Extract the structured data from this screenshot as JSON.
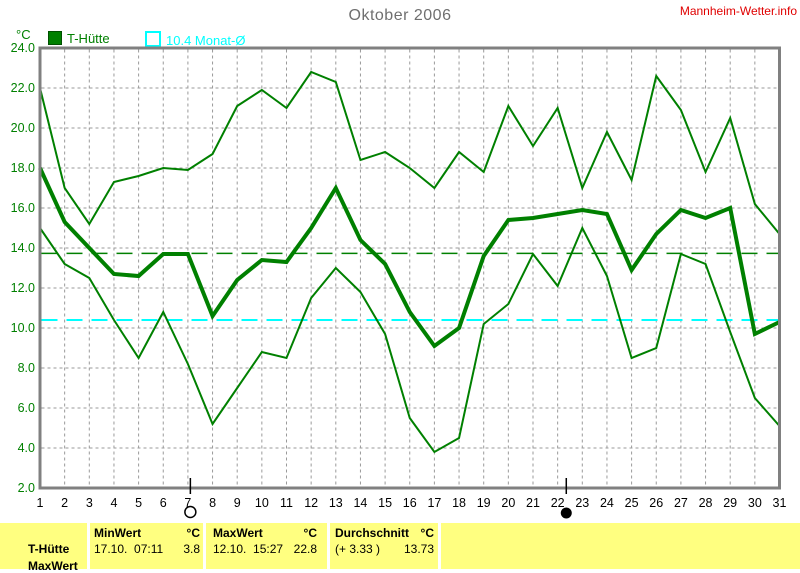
{
  "header": {
    "title": "Oktober 2006",
    "brand": "Mannheim-Wetter.info",
    "axis_unit": "°C"
  },
  "legend": {
    "items": [
      {
        "label": "T-Hütte",
        "color": "#008000",
        "swatch": "filled"
      },
      {
        "label": "10.4 Monat-Ø",
        "color": "#00ffff",
        "swatch": "outline"
      }
    ]
  },
  "chart_data": {
    "type": "line",
    "title": "Oktober 2006",
    "xlabel": "",
    "ylabel": "°C",
    "x": [
      1,
      2,
      3,
      4,
      5,
      6,
      7,
      8,
      9,
      10,
      11,
      12,
      13,
      14,
      15,
      16,
      17,
      18,
      19,
      20,
      21,
      22,
      23,
      24,
      25,
      26,
      27,
      28,
      29,
      30,
      31
    ],
    "xlim": [
      1,
      31
    ],
    "ylim": [
      2,
      24
    ],
    "y_tick_step": 2,
    "grid": true,
    "line_color": "#008000",
    "series": [
      {
        "name": "max",
        "width": 2,
        "values": [
          22.0,
          17.0,
          15.2,
          17.3,
          17.6,
          18.0,
          17.9,
          18.7,
          21.1,
          21.9,
          21.0,
          22.8,
          22.3,
          18.4,
          18.8,
          18.0,
          17.0,
          18.8,
          17.8,
          21.1,
          19.1,
          21.0,
          17.0,
          19.8,
          17.4,
          22.6,
          20.9,
          17.8,
          20.5,
          16.2,
          14.7
        ]
      },
      {
        "name": "mittel",
        "width": 4,
        "values": [
          18.0,
          15.3,
          14.0,
          12.7,
          12.6,
          13.7,
          13.7,
          10.6,
          12.4,
          13.4,
          13.3,
          15.0,
          17.0,
          14.4,
          13.2,
          10.8,
          9.1,
          10.0,
          13.6,
          15.4,
          15.5,
          15.7,
          15.9,
          15.7,
          12.9,
          14.7,
          15.9,
          15.5,
          16.0,
          9.7,
          10.3
        ]
      },
      {
        "name": "min",
        "width": 2,
        "values": [
          15.0,
          13.2,
          12.5,
          10.4,
          8.5,
          10.8,
          8.2,
          5.2,
          7.0,
          8.8,
          8.5,
          11.5,
          13.0,
          11.8,
          9.7,
          5.5,
          3.8,
          4.5,
          10.2,
          11.2,
          13.7,
          12.1,
          15.0,
          12.6,
          8.5,
          9.0,
          13.7,
          13.2,
          9.8,
          6.5,
          5.1
        ]
      }
    ],
    "reference_lines": [
      {
        "name": "monat-mittel",
        "label": "10.4 Monat-Ø",
        "value": 10.4,
        "color": "#00ffff",
        "style": "dashed",
        "width": 2
      },
      {
        "name": "durchschnitt",
        "label": "13.73",
        "value": 13.73,
        "color": "#008000",
        "style": "dashed",
        "width": 1.5
      }
    ],
    "markers": [
      {
        "name": "moon-full",
        "x_day": 7.1,
        "symbol": "open-circle"
      },
      {
        "name": "moon-new",
        "x_day": 22.35,
        "symbol": "filled-circle"
      }
    ]
  },
  "info_panel": {
    "row_label": "T-Hütte",
    "cut_row_label": "MaxWert",
    "columns": [
      {
        "header": "MinWert",
        "unit": "°C",
        "value_left": "17.10.  07:11",
        "value_right": "3.8"
      },
      {
        "header": "MaxWert",
        "unit": "°C",
        "value_left": "12.10.  15:27",
        "value_right": "22.8"
      },
      {
        "header": "Durchschnitt",
        "unit": "°C",
        "value_left": "(+ 3.33 )",
        "value_right": "13.73"
      }
    ]
  }
}
